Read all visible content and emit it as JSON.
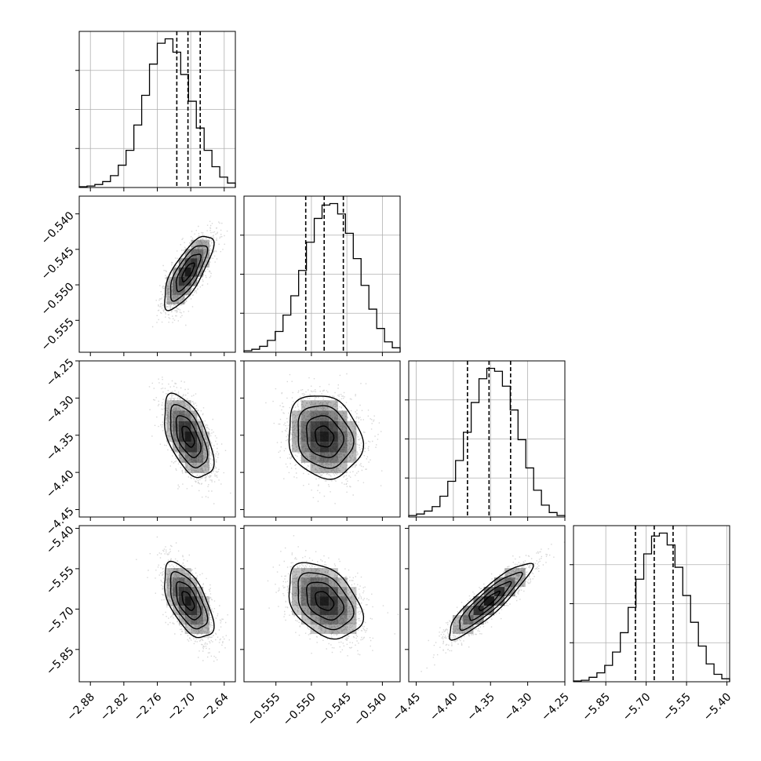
{
  "chart_data": {
    "type": "corner",
    "variables": [
      {
        "range": [
          -2.9,
          -2.62
        ],
        "ticks": [
          -2.88,
          -2.82,
          -2.76,
          -2.7,
          -2.64
        ],
        "tick_labels": [
          "−2.88",
          "−2.82",
          "−2.76",
          "−2.70",
          "−2.64"
        ],
        "mean": -2.705,
        "sd": 0.022,
        "quantiles": [
          -2.725,
          -2.705,
          -2.683
        ]
      },
      {
        "range": [
          -0.5595,
          -0.5375
        ],
        "ticks": [
          -0.555,
          -0.55,
          -0.545,
          -0.54
        ],
        "tick_labels": [
          "−0.555",
          "−0.550",
          "−0.545",
          "−0.540"
        ],
        "mean": -0.5482,
        "sd": 0.0026,
        "quantiles": [
          -0.5508,
          -0.5482,
          -0.5455
        ]
      },
      {
        "range": [
          -4.46,
          -4.25
        ],
        "ticks": [
          -4.45,
          -4.4,
          -4.35,
          -4.3,
          -4.25
        ],
        "tick_labels": [
          "−4.45",
          "−4.40",
          "−4.35",
          "−4.30",
          "−4.25"
        ],
        "mean": -4.352,
        "sd": 0.028,
        "quantiles": [
          -4.381,
          -4.352,
          -4.323
        ]
      },
      {
        "range": [
          -5.97,
          -5.39
        ],
        "ticks": [
          -5.85,
          -5.7,
          -5.55,
          -5.4
        ],
        "tick_labels": [
          "−5.85",
          "−5.70",
          "−5.55",
          "−5.40"
        ],
        "mean": -5.67,
        "sd": 0.07,
        "quantiles": [
          -5.74,
          -5.67,
          -5.6
        ]
      }
    ],
    "hist_heights": [
      [
        0.005,
        0.01,
        0.02,
        0.04,
        0.08,
        0.15,
        0.25,
        0.42,
        0.62,
        0.83,
        0.97,
        1.0,
        0.91,
        0.76,
        0.58,
        0.4,
        0.25,
        0.14,
        0.07,
        0.03
      ],
      [
        0.01,
        0.02,
        0.04,
        0.08,
        0.14,
        0.25,
        0.38,
        0.55,
        0.74,
        0.9,
        0.99,
        1.0,
        0.93,
        0.8,
        0.63,
        0.45,
        0.29,
        0.16,
        0.07,
        0.03
      ],
      [
        0.01,
        0.02,
        0.04,
        0.07,
        0.14,
        0.24,
        0.38,
        0.57,
        0.77,
        0.93,
        1.0,
        0.98,
        0.88,
        0.72,
        0.52,
        0.33,
        0.18,
        0.08,
        0.03,
        0.01
      ],
      [
        0.005,
        0.01,
        0.03,
        0.06,
        0.11,
        0.2,
        0.33,
        0.5,
        0.69,
        0.86,
        0.98,
        1.0,
        0.92,
        0.77,
        0.58,
        0.4,
        0.24,
        0.12,
        0.05,
        0.02
      ]
    ],
    "correlations": [
      [
        1,
        0.75,
        -0.55,
        -0.6
      ],
      [
        0.75,
        1,
        -0.15,
        -0.38
      ],
      [
        -0.55,
        -0.15,
        1,
        0.9
      ],
      [
        -0.6,
        -0.38,
        0.9,
        1
      ]
    ],
    "contour_sigma_levels": [
      0.5,
      1.0,
      1.5,
      2.0
    ],
    "grid": true,
    "colors": {
      "points": "#8c8c8c",
      "density_dark": "#000000",
      "contour": "#000000"
    }
  }
}
